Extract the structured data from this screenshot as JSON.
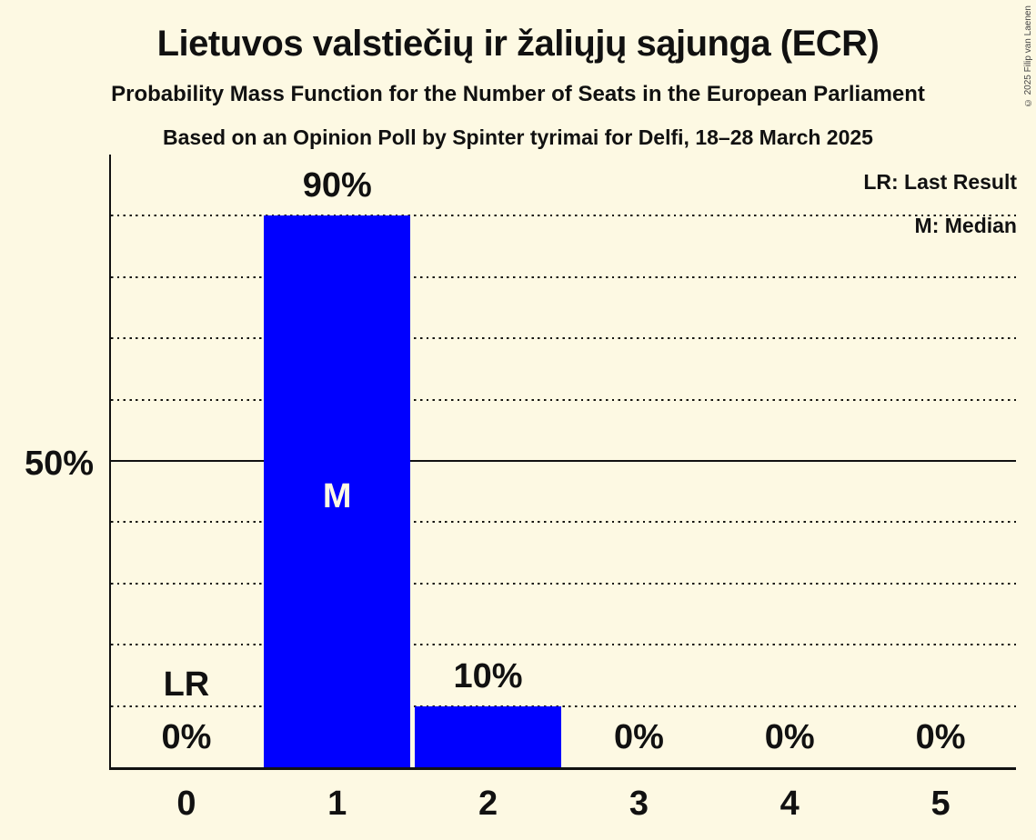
{
  "title": "Lietuvos valstiečių ir žaliųjų sąjunga (ECR)",
  "subtitle": "Probability Mass Function for the Number of Seats in the European Parliament",
  "poll_line": "Based on an Opinion Poll by Spinter tyrimai for Delfi, 18–28 March 2025",
  "legend": {
    "last_result": "LR: Last Result",
    "median": "M: Median"
  },
  "copyright": "© 2025 Filip van Laenen",
  "y_axis": {
    "tick_label": "50%"
  },
  "chart_data": {
    "type": "bar",
    "title": "Probability Mass Function for the Number of Seats in the European Parliament",
    "categories": [
      "0",
      "1",
      "2",
      "3",
      "4",
      "5"
    ],
    "values": [
      0,
      90,
      10,
      0,
      0,
      0
    ],
    "bar_labels": [
      "0%",
      "90%",
      "10%",
      "0%",
      "0%",
      "0%"
    ],
    "annotations": [
      {
        "category": "0",
        "text": "LR",
        "meaning": "Last Result"
      },
      {
        "category": "1",
        "text": "M",
        "meaning": "Median"
      }
    ],
    "ylim": [
      0,
      100
    ],
    "ytick_labels": [
      "50%"
    ],
    "gridlines": {
      "dotted_every_percent": 10,
      "solid_at_percent": 50
    },
    "legend_position": "top-right",
    "colors": {
      "bar": "#0000ff",
      "background": "#fdf9e3",
      "text": "#111111",
      "median_label": "#fdf9e3"
    }
  }
}
